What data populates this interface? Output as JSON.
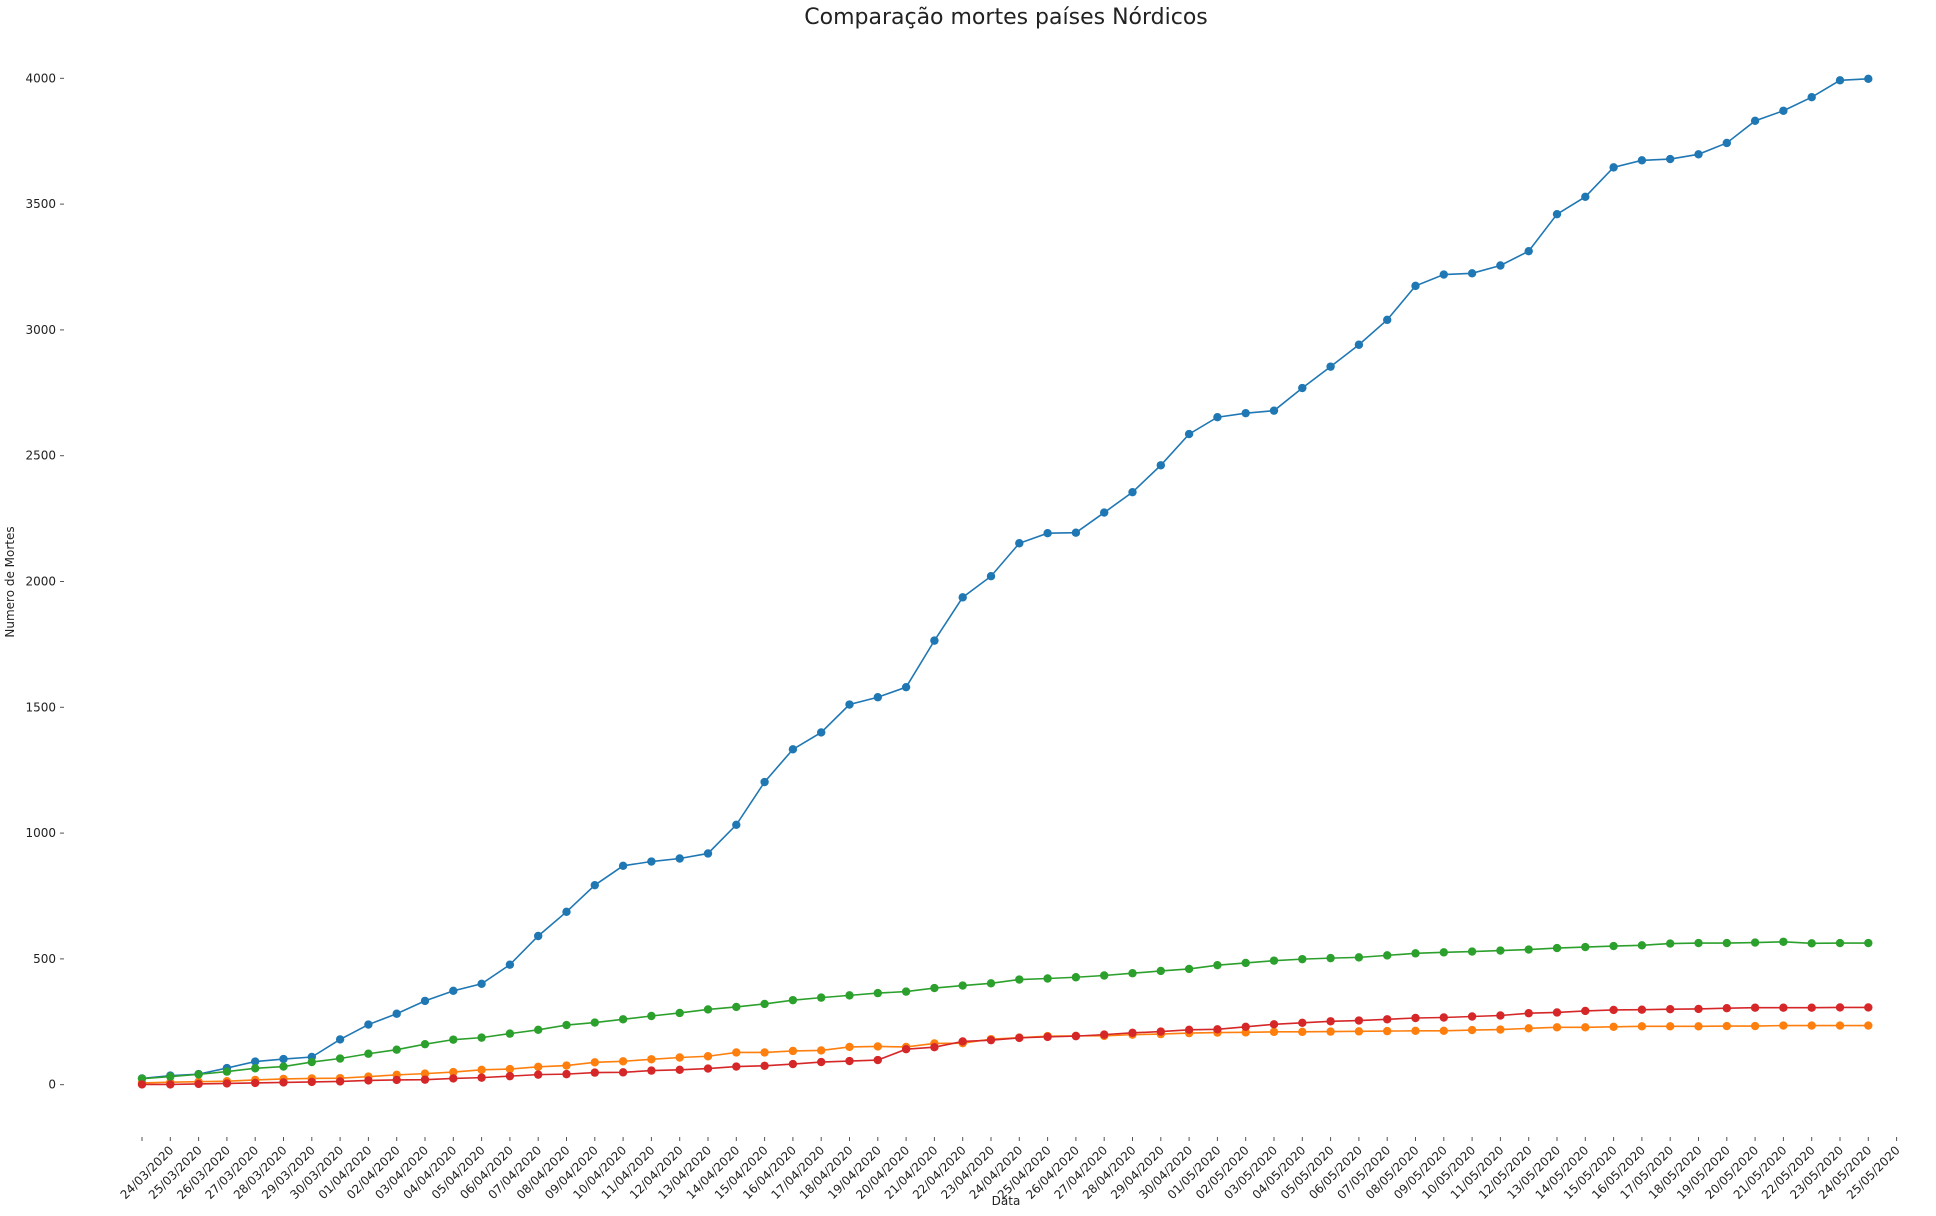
{
  "chart_data": {
    "type": "line",
    "title": "Comparação mortes países Nórdicos",
    "xlabel": "Data",
    "ylabel": "Numero de Mortes",
    "categories": [
      null,
      "24/03/2020",
      "25/03/2020",
      "26/03/2020",
      "27/03/2020",
      "28/03/2020",
      "29/03/2020",
      "30/03/2020",
      "01/04/2020",
      "02/04/2020",
      "03/04/2020",
      "04/04/2020",
      "05/04/2020",
      "06/04/2020",
      "07/04/2020",
      "08/04/2020",
      "09/04/2020",
      "10/04/2020",
      "11/04/2020",
      "12/04/2020",
      "13/04/2020",
      "14/04/2020",
      "15/04/2020",
      "16/04/2020",
      "17/04/2020",
      "18/04/2020",
      "19/04/2020",
      "20/04/2020",
      "21/04/2020",
      "22/04/2020",
      "23/04/2020",
      "24/04/2020",
      "25/04/2020",
      "26/04/2020",
      "27/04/2020",
      "28/04/2020",
      "29/04/2020",
      "30/04/2020",
      "01/05/2020",
      "02/05/2020",
      "03/05/2020",
      "04/05/2020",
      "05/05/2020",
      "06/05/2020",
      "07/05/2020",
      "08/05/2020",
      "09/05/2020",
      "10/05/2020",
      "11/05/2020",
      "12/05/2020",
      "13/05/2020",
      "14/05/2020",
      "15/05/2020",
      "16/05/2020",
      "17/05/2020",
      "18/05/2020",
      "19/05/2020",
      "20/05/2020",
      "21/05/2020",
      "22/05/2020",
      "23/05/2020",
      "24/05/2020",
      "25/05/2020"
    ],
    "series": [
      {
        "color": "#1f77b4",
        "values": [
          25,
          36,
          42,
          66,
          92,
          102,
          110,
          180,
          239,
          282,
          333,
          373,
          401,
          477,
          591,
          687,
          793,
          870,
          887,
          899,
          919,
          1033,
          1203,
          1333,
          1400,
          1511,
          1540,
          1580,
          1765,
          1937,
          2021,
          2152,
          2192,
          2194,
          2274,
          2355,
          2462,
          2586,
          2653,
          2669,
          2679,
          2769,
          2854,
          2941,
          3040,
          3175,
          3220,
          3225,
          3256,
          3313,
          3460,
          3529,
          3646,
          3674,
          3679,
          3698,
          3743,
          3831,
          3871,
          3925,
          3992,
          3998,
          null
        ]
      },
      {
        "color": "#ff7f0e",
        "values": [
          7,
          10,
          12,
          14,
          19,
          23,
          25,
          26,
          32,
          39,
          44,
          50,
          59,
          62,
          71,
          76,
          89,
          93,
          101,
          108,
          113,
          128,
          128,
          134,
          136,
          150,
          152,
          150,
          164,
          165,
          181,
          187,
          193,
          194,
          194,
          199,
          201,
          205,
          207,
          208,
          210,
          210,
          211,
          212,
          213,
          214,
          214,
          217,
          219,
          224,
          228,
          228,
          230,
          232,
          232,
          232,
          233,
          233,
          235,
          235,
          235,
          235,
          null
        ]
      },
      {
        "color": "#2ca02c",
        "values": [
          24,
          32,
          41,
          52,
          65,
          72,
          90,
          104,
          123,
          139,
          161,
          179,
          187,
          203,
          218,
          237,
          247,
          260,
          273,
          285,
          299,
          309,
          321,
          336,
          346,
          355,
          364,
          370,
          384,
          394,
          403,
          418,
          422,
          427,
          434,
          443,
          452,
          460,
          475,
          484,
          493,
          499,
          503,
          506,
          514,
          522,
          526,
          529,
          533,
          537,
          543,
          547,
          551,
          554,
          561,
          563,
          563,
          565,
          568,
          562,
          563,
          563,
          null
        ]
      },
      {
        "color": "#d62728",
        "values": [
          1,
          1,
          3,
          5,
          7,
          9,
          11,
          13,
          17,
          19,
          20,
          25,
          28,
          34,
          40,
          42,
          48,
          49,
          56,
          59,
          64,
          72,
          75,
          82,
          90,
          94,
          98,
          141,
          149,
          172,
          177,
          186,
          190,
          193,
          199,
          206,
          211,
          218,
          220,
          230,
          240,
          246,
          252,
          255,
          260,
          265,
          267,
          271,
          275,
          284,
          287,
          293,
          297,
          298,
          300,
          301,
          304,
          306,
          306,
          306,
          307,
          307,
          null
        ]
      }
    ],
    "ylim": [
      -200,
      4200
    ],
    "yticks": [
      0,
      500,
      1000,
      1500,
      2000,
      2500,
      3000,
      3500,
      4000
    ],
    "grid": false
  }
}
